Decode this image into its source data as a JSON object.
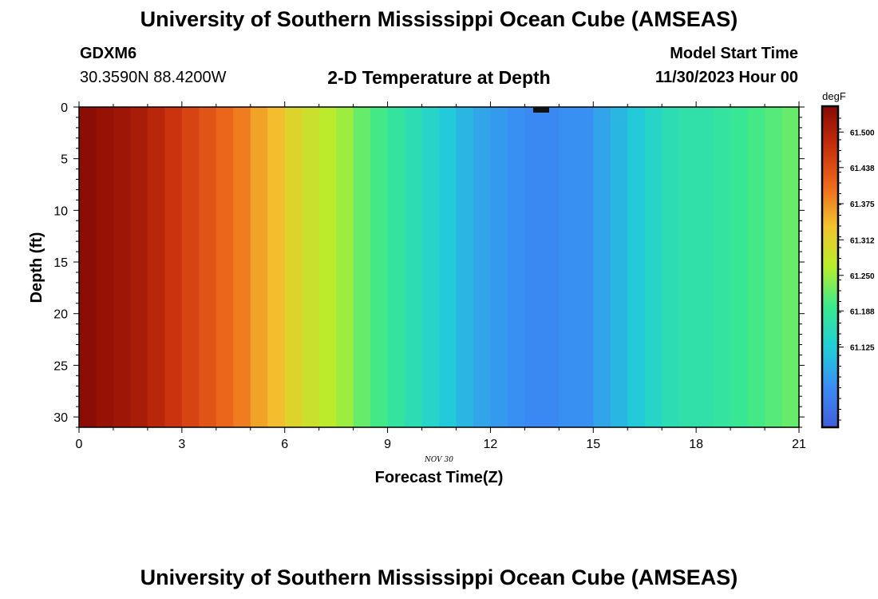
{
  "header": {
    "title": "University of Southern Mississippi Ocean Cube (AMSEAS)",
    "station": "GDXM6",
    "coords": "30.3590N  88.4200W",
    "subtitle": "2-D Temperature at Depth",
    "start_label": "Model Start Time",
    "start_value": "11/30/2023 Hour 00"
  },
  "footer": {
    "title": "University of Southern Mississippi Ocean Cube (AMSEAS)"
  },
  "chart_data": {
    "type": "heatmap",
    "title": "2-D Temperature at Depth",
    "xlabel": "Forecast Time(Z)",
    "ylabel": "Depth (ft)",
    "date_label": "NOV  30",
    "units": "degF",
    "xlim": [
      0,
      21
    ],
    "ylim": [
      31,
      0
    ],
    "x_ticks": [
      0,
      3,
      6,
      9,
      12,
      15,
      18,
      21
    ],
    "y_ticks": [
      0,
      5,
      10,
      15,
      20,
      25,
      30
    ],
    "time_step_hours": 0.5,
    "temperature_by_time": [
      61.54,
      61.53,
      61.52,
      61.51,
      61.49,
      61.47,
      61.45,
      61.43,
      61.41,
      61.39,
      61.36,
      61.34,
      61.31,
      61.29,
      61.27,
      61.25,
      61.22,
      61.2,
      61.18,
      61.16,
      61.14,
      61.12,
      61.1,
      61.08,
      61.07,
      61.06,
      61.05,
      61.05,
      61.06,
      61.06,
      61.08,
      61.1,
      61.12,
      61.14,
      61.16,
      61.17,
      61.17,
      61.18,
      61.19,
      61.2,
      61.21,
      61.22
    ],
    "colorbar": {
      "min": 60.985,
      "max": 61.545,
      "tick_values": [
        61.125,
        61.188,
        61.25,
        61.312,
        61.375,
        61.438,
        61.5
      ],
      "tick_labels": [
        "61.125",
        "61.188",
        "61.250",
        "61.312",
        "61.375",
        "61.438",
        "61.500"
      ],
      "colors": [
        "#3f5fd6",
        "#3a8cf4",
        "#20cfd8",
        "#3ae98e",
        "#b8ee2c",
        "#f3c32e",
        "#ee6a1c",
        "#c72f0c",
        "#870a02"
      ]
    }
  }
}
